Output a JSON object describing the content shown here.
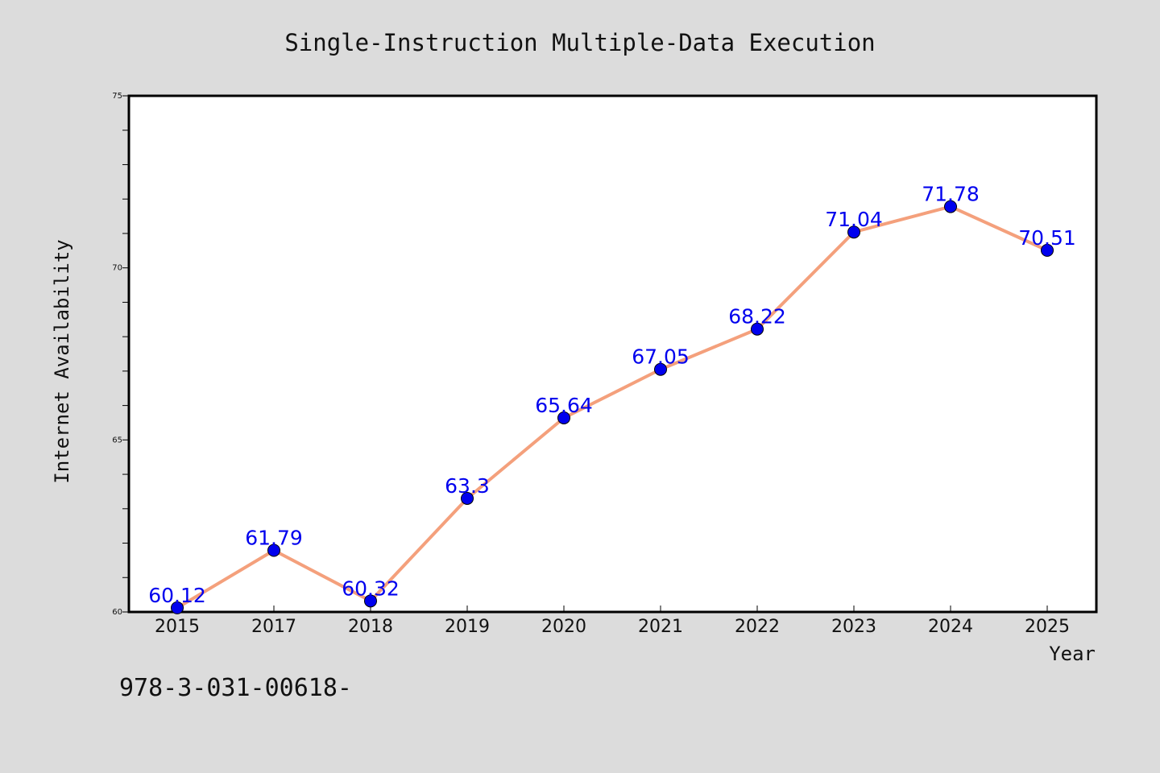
{
  "chart_data": {
    "type": "line",
    "title": "Single-Instruction Multiple-Data Execution",
    "xlabel": "Year",
    "ylabel": "Internet Availability",
    "categories": [
      "2015",
      "2017",
      "2018",
      "2019",
      "2020",
      "2021",
      "2022",
      "2023",
      "2024",
      "2025"
    ],
    "series": [
      {
        "values": [
          60.12,
          61.79,
          60.32,
          63.3,
          65.64,
          67.05,
          68.22,
          71.04,
          71.78,
          70.51
        ],
        "labels": [
          "60.12",
          "61.79",
          "60.32",
          "63.3",
          "65.64",
          "67.05",
          "68.22",
          "71.04",
          "71.78",
          "70.51"
        ],
        "line_color": "#f4a07c",
        "marker_color": "#0000ee"
      }
    ],
    "ylim": [
      60,
      75
    ],
    "yticks": [
      "60",
      "65",
      "70",
      "75"
    ],
    "grid": false,
    "legend": "none"
  },
  "footer": {
    "text": "978-3-031-00618-"
  },
  "colors": {
    "background": "#dcdcdc",
    "plot_background": "#ffffff"
  }
}
